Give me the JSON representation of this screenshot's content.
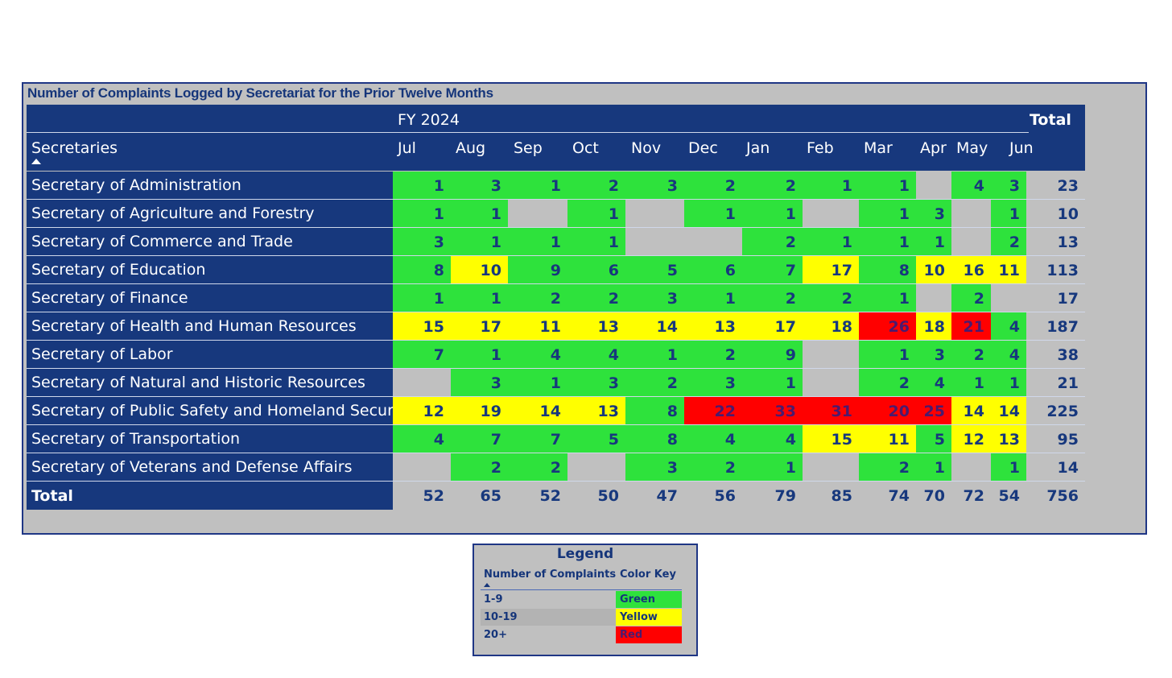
{
  "title": "Number of Complaints Logged by Secretariat for the Prior Twelve Months",
  "header": {
    "fiscal_year": "FY 2024",
    "total_label": "Total",
    "rows_label": "Secretaries",
    "months": [
      "Jul",
      "Aug",
      "Sep",
      "Oct",
      "Nov",
      "Dec",
      "Jan",
      "Feb",
      "Mar",
      "Apr",
      "May",
      "Jun"
    ]
  },
  "rows": [
    {
      "name": "Secretary of Administration",
      "values": [
        "1",
        "3",
        "1",
        "2",
        "3",
        "2",
        "2",
        "1",
        "1",
        "",
        "4",
        "3"
      ],
      "total": "23"
    },
    {
      "name": "Secretary of Agriculture and Forestry",
      "values": [
        "1",
        "1",
        "",
        "1",
        "",
        "1",
        "1",
        "",
        "1",
        "3",
        "",
        "1"
      ],
      "total": "10"
    },
    {
      "name": "Secretary of Commerce and Trade",
      "values": [
        "3",
        "1",
        "1",
        "1",
        "",
        "",
        "2",
        "1",
        "1",
        "1",
        "",
        "2"
      ],
      "total": "13"
    },
    {
      "name": "Secretary of Education",
      "values": [
        "8",
        "10",
        "9",
        "6",
        "5",
        "6",
        "7",
        "17",
        "8",
        "10",
        "16",
        "11"
      ],
      "total": "113"
    },
    {
      "name": "Secretary of Finance",
      "values": [
        "1",
        "1",
        "2",
        "2",
        "3",
        "1",
        "2",
        "2",
        "1",
        "",
        "2",
        ""
      ],
      "total": "17"
    },
    {
      "name": "Secretary of Health and Human Resources",
      "values": [
        "15",
        "17",
        "11",
        "13",
        "14",
        "13",
        "17",
        "18",
        "26",
        "18",
        "21",
        "4"
      ],
      "total": "187"
    },
    {
      "name": "Secretary of Labor",
      "values": [
        "7",
        "1",
        "4",
        "4",
        "1",
        "2",
        "9",
        "",
        "1",
        "3",
        "2",
        "4"
      ],
      "total": "38"
    },
    {
      "name": "Secretary of Natural and Historic Resources",
      "values": [
        "",
        "3",
        "1",
        "3",
        "2",
        "3",
        "1",
        "",
        "2",
        "4",
        "1",
        "1"
      ],
      "total": "21"
    },
    {
      "name": "Secretary of Public Safety and Homeland Security",
      "values": [
        "12",
        "19",
        "14",
        "13",
        "8",
        "22",
        "33",
        "31",
        "20",
        "25",
        "14",
        "14"
      ],
      "total": "225"
    },
    {
      "name": "Secretary of Transportation",
      "values": [
        "4",
        "7",
        "7",
        "5",
        "8",
        "4",
        "4",
        "15",
        "11",
        "5",
        "12",
        "13"
      ],
      "total": "95"
    },
    {
      "name": "Secretary of Veterans and Defense Affairs",
      "values": [
        "",
        "2",
        "2",
        "",
        "3",
        "2",
        "1",
        "",
        "2",
        "1",
        "",
        "1"
      ],
      "total": "14"
    }
  ],
  "totals": {
    "label": "Total",
    "values": [
      "52",
      "65",
      "52",
      "50",
      "47",
      "56",
      "79",
      "85",
      "74",
      "70",
      "72",
      "54"
    ],
    "grand_total": "756"
  },
  "legend": {
    "title": "Legend",
    "col_complaints": "Number of Complaints",
    "col_color": "Color Key",
    "items": [
      {
        "range": "1-9",
        "color_name": "Green",
        "color": "#2ee23c"
      },
      {
        "range": "10-19",
        "color_name": "Yellow",
        "color": "#ffff00"
      },
      {
        "range": "20+",
        "color_name": "Red",
        "color": "#ff0000"
      }
    ]
  },
  "colors": {
    "header_bg": "#17387d",
    "green": "#2ee23c",
    "yellow": "#ffff00",
    "red": "#ff0000",
    "empty": "#c0c0c0"
  }
}
